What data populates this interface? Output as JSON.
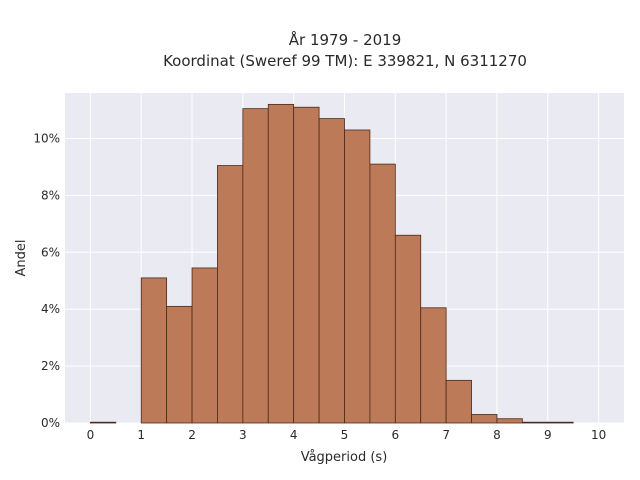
{
  "chart_data": {
    "type": "bar",
    "title_line1": "År 1979 - 2019",
    "title_line2": "Koordinat (Sweref 99 TM): E 339821, N 6311270",
    "xlabel": "Vågperiod (s)",
    "ylabel": "Andel",
    "bin_width": 0.5,
    "bins_start": [
      0,
      0.5,
      1,
      1.5,
      2,
      2.5,
      3,
      3.5,
      4,
      4.5,
      5,
      5.5,
      6,
      6.5,
      7,
      7.5,
      8,
      8.5,
      9,
      9.5
    ],
    "values_percent": [
      0.02,
      0,
      5.1,
      4.1,
      5.45,
      9.05,
      11.05,
      11.2,
      11.1,
      10.7,
      10.3,
      9.1,
      6.6,
      4.05,
      1.5,
      0.3,
      0.15,
      0.02,
      0.02,
      0
    ],
    "xlim": [
      -0.5,
      10.5
    ],
    "ylim": [
      0,
      11.6
    ],
    "x_ticks": [
      "0",
      "1",
      "2",
      "3",
      "4",
      "5",
      "6",
      "7",
      "8",
      "9",
      "10"
    ],
    "y_ticks": [
      "0%",
      "2%",
      "4%",
      "6%",
      "8%",
      "10%"
    ],
    "grid": true,
    "colors": {
      "bar_fill": "#bd7a58",
      "bar_stroke": "#4a2a1a",
      "plot_background": "#eaeaf2",
      "grid": "#ffffff"
    }
  }
}
